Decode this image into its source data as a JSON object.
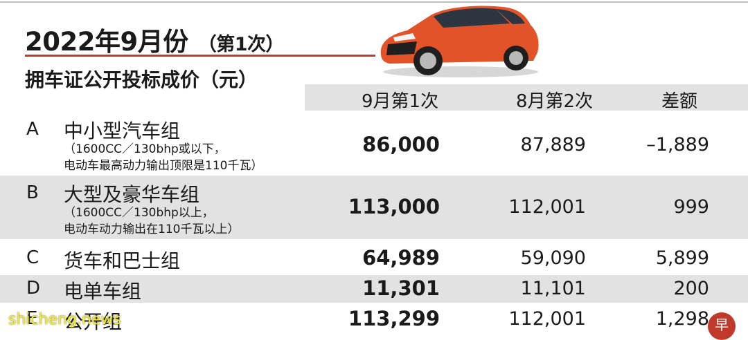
{
  "header": {
    "title": "2022年9月份",
    "title_sub": "（第1次）",
    "subtitle": "拥车证公开投标成价（元）"
  },
  "columns": [
    "9月第1次",
    "8月第2次",
    "差额"
  ],
  "rows": [
    {
      "cat": "A",
      "name": "中小型汽车组",
      "notes": [
        "（1600CC／130bhp或以下，",
        "电动车最高动力输出顶限是110千瓦）"
      ],
      "current": "86,000",
      "previous": "87,889",
      "diff": "–1,889"
    },
    {
      "cat": "B",
      "name": "大型及豪华车组",
      "notes": [
        "（1600CC／130bhp以上，",
        "电动车动力输出在110千瓦以上）"
      ],
      "current": "113,000",
      "previous": "112,001",
      "diff": "999"
    },
    {
      "cat": "C",
      "name": "货车和巴士组",
      "notes": [],
      "current": "64,989",
      "previous": "59,090",
      "diff": "5,899"
    },
    {
      "cat": "D",
      "name": "电单车组",
      "notes": [],
      "current": "11,301",
      "previous": "11,101",
      "diff": "200"
    },
    {
      "cat": "E",
      "name": "公开组",
      "notes": [],
      "current": "113,299",
      "previous": "112,001",
      "diff": "1,298"
    }
  ],
  "watermark": "shicheng.news",
  "stamp": "早",
  "colors": {
    "accent_red": "#c0392b",
    "band_gray": "#e2e2e2",
    "car_orange": "#e2532a",
    "watermark": "#f2ec3a"
  },
  "image": {
    "name": "red-hatchback-car-illustration"
  }
}
